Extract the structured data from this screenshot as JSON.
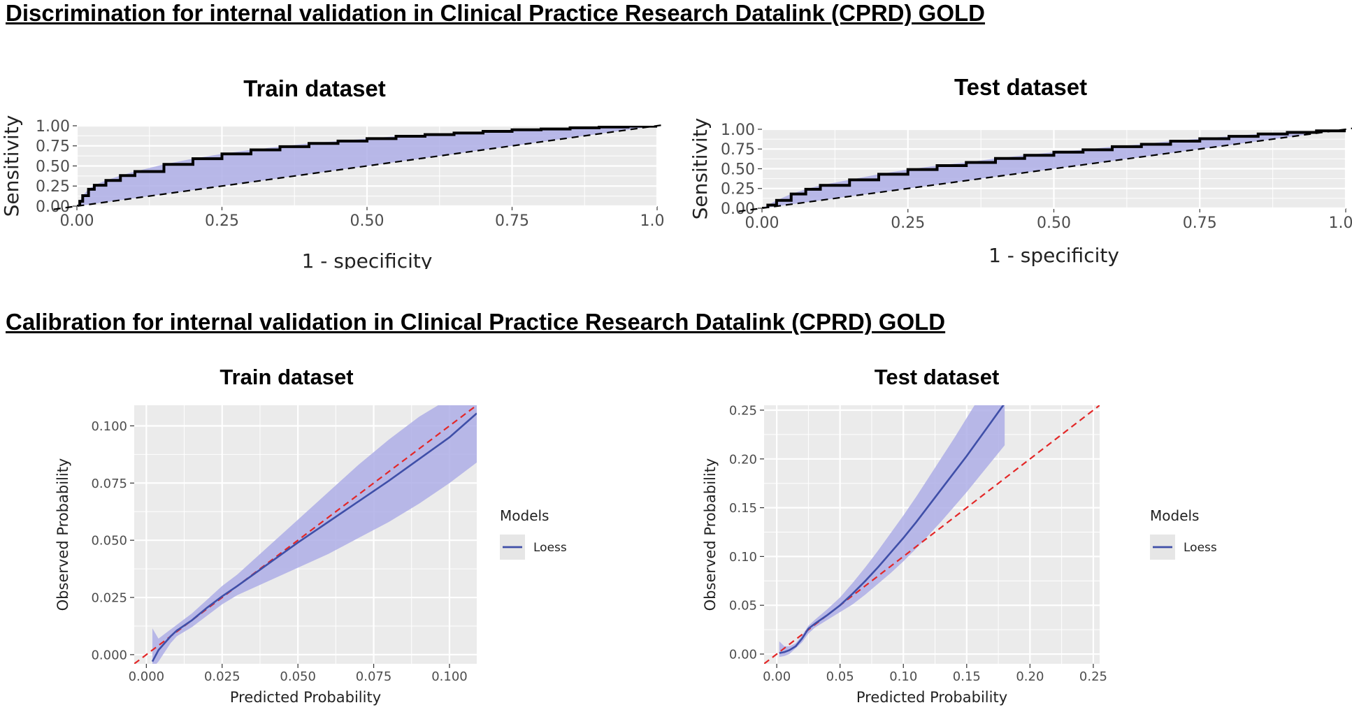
{
  "sections": {
    "discrimination_title": "Discrimination for internal validation in Clinical Practice Research Datalink (CPRD) GOLD",
    "calibration_title": "Calibration for internal validation in Clinical Practice Research Datalink (CPRD) GOLD"
  },
  "colors": {
    "panel_bg": "#ebebeb",
    "grid": "#ffffff",
    "band": "#aeaee6",
    "roc_line": "#000000",
    "loess": "#3f4fa8",
    "reference": "#e32727",
    "legend_key_bg": "#e6e6e6"
  },
  "chart_data": [
    {
      "type": "line",
      "title": "Train dataset",
      "xlabel": "1 - specificity",
      "ylabel": "Sensitivity",
      "xlim": [
        0,
        1
      ],
      "ylim": [
        0,
        1
      ],
      "xticks": [
        "0.00",
        "0.25",
        "0.50",
        "0.75",
        "1.00"
      ],
      "yticks": [
        "0.00",
        "0.25",
        "0.50",
        "0.75",
        "1.00"
      ],
      "grid": true,
      "reference_line": "dashed diagonal",
      "series": [
        {
          "x": [
            0,
            0.005,
            0.01,
            0.02,
            0.03,
            0.05,
            0.075,
            0.1,
            0.15,
            0.2,
            0.25,
            0.3,
            0.35,
            0.4,
            0.45,
            0.5,
            0.55,
            0.6,
            0.65,
            0.7,
            0.75,
            0.8,
            0.85,
            0.9,
            0.95,
            1.0
          ],
          "values": [
            0,
            0.06,
            0.13,
            0.21,
            0.26,
            0.32,
            0.38,
            0.43,
            0.52,
            0.59,
            0.65,
            0.7,
            0.74,
            0.78,
            0.81,
            0.84,
            0.87,
            0.89,
            0.91,
            0.93,
            0.95,
            0.96,
            0.975,
            0.985,
            0.995,
            1.0
          ]
        }
      ]
    },
    {
      "type": "line",
      "title": "Test dataset",
      "xlabel": "1 - specificity",
      "ylabel": "Sensitivity",
      "xlim": [
        0,
        1
      ],
      "ylim": [
        0,
        1
      ],
      "xticks": [
        "0.00",
        "0.25",
        "0.50",
        "0.75",
        "1.00"
      ],
      "yticks": [
        "0.00",
        "0.25",
        "0.50",
        "0.75",
        "1.00"
      ],
      "grid": true,
      "reference_line": "dashed diagonal",
      "series": [
        {
          "x": [
            0,
            0.01,
            0.025,
            0.05,
            0.075,
            0.1,
            0.15,
            0.2,
            0.25,
            0.3,
            0.35,
            0.4,
            0.45,
            0.5,
            0.55,
            0.6,
            0.65,
            0.7,
            0.75,
            0.8,
            0.85,
            0.9,
            0.95,
            1.0
          ],
          "values": [
            0,
            0.04,
            0.1,
            0.18,
            0.24,
            0.29,
            0.36,
            0.43,
            0.49,
            0.54,
            0.58,
            0.63,
            0.67,
            0.71,
            0.74,
            0.78,
            0.81,
            0.85,
            0.88,
            0.91,
            0.94,
            0.96,
            0.98,
            1.0
          ]
        }
      ]
    },
    {
      "type": "line",
      "title": "Train dataset",
      "xlabel": "Predicted Probability",
      "ylabel": "Observed Probability",
      "xlim": [
        -0.004,
        0.109
      ],
      "ylim": [
        -0.004,
        0.109
      ],
      "xticks": [
        "0.000",
        "0.025",
        "0.050",
        "0.075",
        "0.100"
      ],
      "yticks": [
        "0.000",
        "0.025",
        "0.050",
        "0.075",
        "0.100"
      ],
      "grid": true,
      "legend_title": "Models",
      "legend_position": "right",
      "reference_line": "dashed red diagonal",
      "series": [
        {
          "name": "Loess",
          "x": [
            0.002,
            0.004,
            0.006,
            0.008,
            0.01,
            0.015,
            0.02,
            0.025,
            0.03,
            0.04,
            0.05,
            0.06,
            0.07,
            0.08,
            0.09,
            0.1,
            0.109
          ],
          "values": [
            -0.003,
            0.002,
            0.005,
            0.008,
            0.0105,
            0.015,
            0.0205,
            0.0255,
            0.03,
            0.0395,
            0.049,
            0.058,
            0.067,
            0.076,
            0.0855,
            0.095,
            0.1055
          ],
          "lower": [
            -0.006,
            -0.003,
            0.001,
            0.005,
            0.008,
            0.012,
            0.017,
            0.022,
            0.026,
            0.032,
            0.038,
            0.044,
            0.051,
            0.058,
            0.066,
            0.075,
            0.084
          ],
          "upper": [
            0.0115,
            0.007,
            0.009,
            0.011,
            0.013,
            0.018,
            0.024,
            0.03,
            0.035,
            0.047,
            0.059,
            0.071,
            0.083,
            0.094,
            0.104,
            0.112,
            0.119
          ]
        }
      ]
    },
    {
      "type": "line",
      "title": "Test dataset",
      "xlabel": "Predicted Probability",
      "ylabel": "Observed Probability",
      "xlim": [
        -0.01,
        0.255
      ],
      "ylim": [
        -0.01,
        0.255
      ],
      "xticks": [
        "0.00",
        "0.05",
        "0.10",
        "0.15",
        "0.20",
        "0.25"
      ],
      "yticks": [
        "0.00",
        "0.05",
        "0.10",
        "0.15",
        "0.20",
        "0.25"
      ],
      "grid": true,
      "legend_title": "Models",
      "legend_position": "right",
      "reference_line": "dashed red diagonal",
      "series": [
        {
          "name": "Loess",
          "x": [
            0.002,
            0.006,
            0.01,
            0.015,
            0.02,
            0.025,
            0.03,
            0.04,
            0.05,
            0.06,
            0.07,
            0.08,
            0.09,
            0.1,
            0.11,
            0.12,
            0.13,
            0.14,
            0.15,
            0.16,
            0.17,
            0.18
          ],
          "values": [
            0.001,
            0.002,
            0.004,
            0.008,
            0.016,
            0.026,
            0.031,
            0.04,
            0.05,
            0.062,
            0.075,
            0.089,
            0.104,
            0.119,
            0.135,
            0.152,
            0.169,
            0.186,
            0.203,
            0.221,
            0.239,
            0.257
          ],
          "lower": [
            -0.003,
            -0.002,
            0.0,
            0.006,
            0.012,
            0.021,
            0.027,
            0.035,
            0.043,
            0.051,
            0.061,
            0.072,
            0.083,
            0.095,
            0.108,
            0.122,
            0.136,
            0.151,
            0.166,
            0.182,
            0.198,
            0.214
          ],
          "upper": [
            0.013,
            0.008,
            0.008,
            0.011,
            0.019,
            0.029,
            0.035,
            0.046,
            0.058,
            0.073,
            0.089,
            0.106,
            0.124,
            0.142,
            0.161,
            0.181,
            0.201,
            0.221,
            0.242,
            0.263,
            0.284,
            0.305
          ]
        }
      ]
    }
  ]
}
